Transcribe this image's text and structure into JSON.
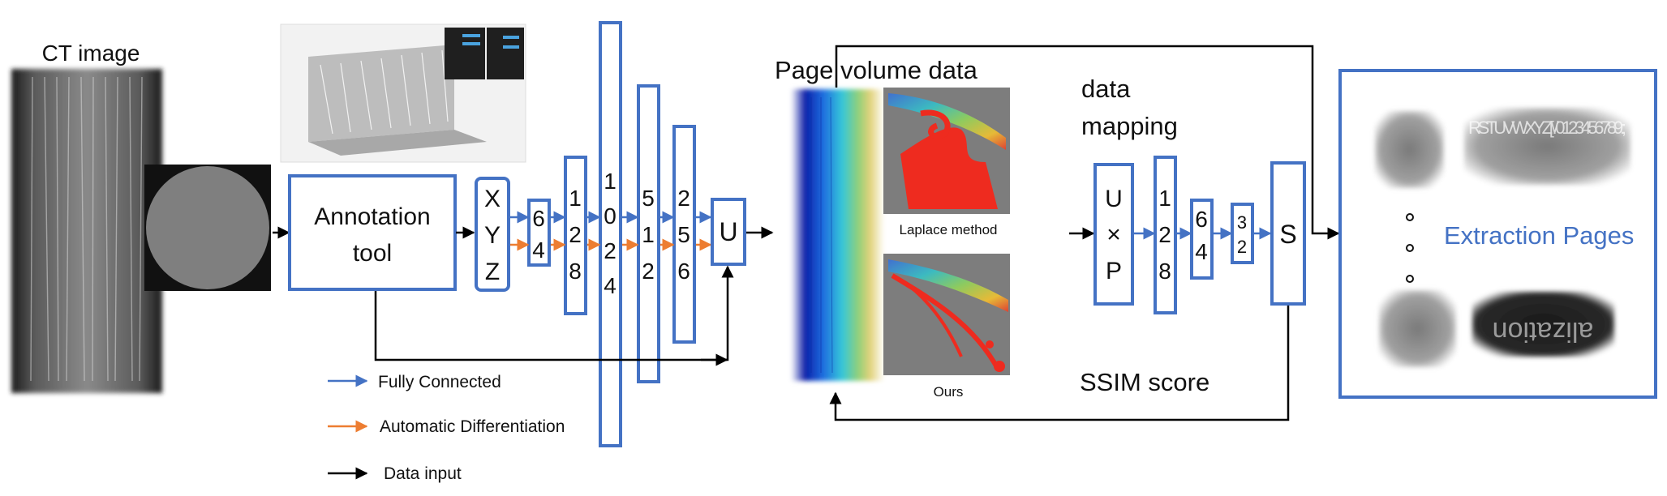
{
  "input": {
    "ct_label": "CT image",
    "tool_label_line1": "Annotation",
    "tool_label_line2": "tool"
  },
  "network": {
    "xyz": [
      "X",
      "Y",
      "Z"
    ],
    "layers": [
      {
        "id": "l64",
        "chars": [
          "6",
          "4"
        ]
      },
      {
        "id": "l128",
        "chars": [
          "1",
          "2",
          "8"
        ]
      },
      {
        "id": "l1024",
        "chars": [
          "1",
          "0",
          "2",
          "4"
        ]
      },
      {
        "id": "l512",
        "chars": [
          "5",
          "1",
          "2"
        ]
      },
      {
        "id": "l256",
        "chars": [
          "2",
          "5",
          "6"
        ]
      }
    ],
    "u_label": "U"
  },
  "legend": {
    "fully_connected": "Fully Connected",
    "auto_diff": "Automatic Differentiation",
    "data_input": "Data input",
    "colors": {
      "fully_connected": "#4472c4",
      "auto_diff": "#ed7d31",
      "data_input": "#000000"
    }
  },
  "volume": {
    "title": "Page volume data",
    "laplace_caption": "Laplace method",
    "ours_caption": "Ours"
  },
  "mapping": {
    "label_line1": "data",
    "label_line2": "mapping",
    "uxp": [
      "U",
      "×",
      "P"
    ],
    "layers": [
      {
        "id": "m128",
        "chars": [
          "1",
          "2",
          "8"
        ]
      },
      {
        "id": "m64",
        "chars": [
          "6",
          "4"
        ]
      },
      {
        "id": "m32",
        "chars": [
          "3",
          "2"
        ]
      }
    ],
    "s_label": "S",
    "ssim_label": "SSIM score"
  },
  "output": {
    "title": "Extraction Pages",
    "thumb_text_top": "RSTUVWXYZ[\\ /0123456789:;",
    "thumb_text_bottom": "alization"
  }
}
